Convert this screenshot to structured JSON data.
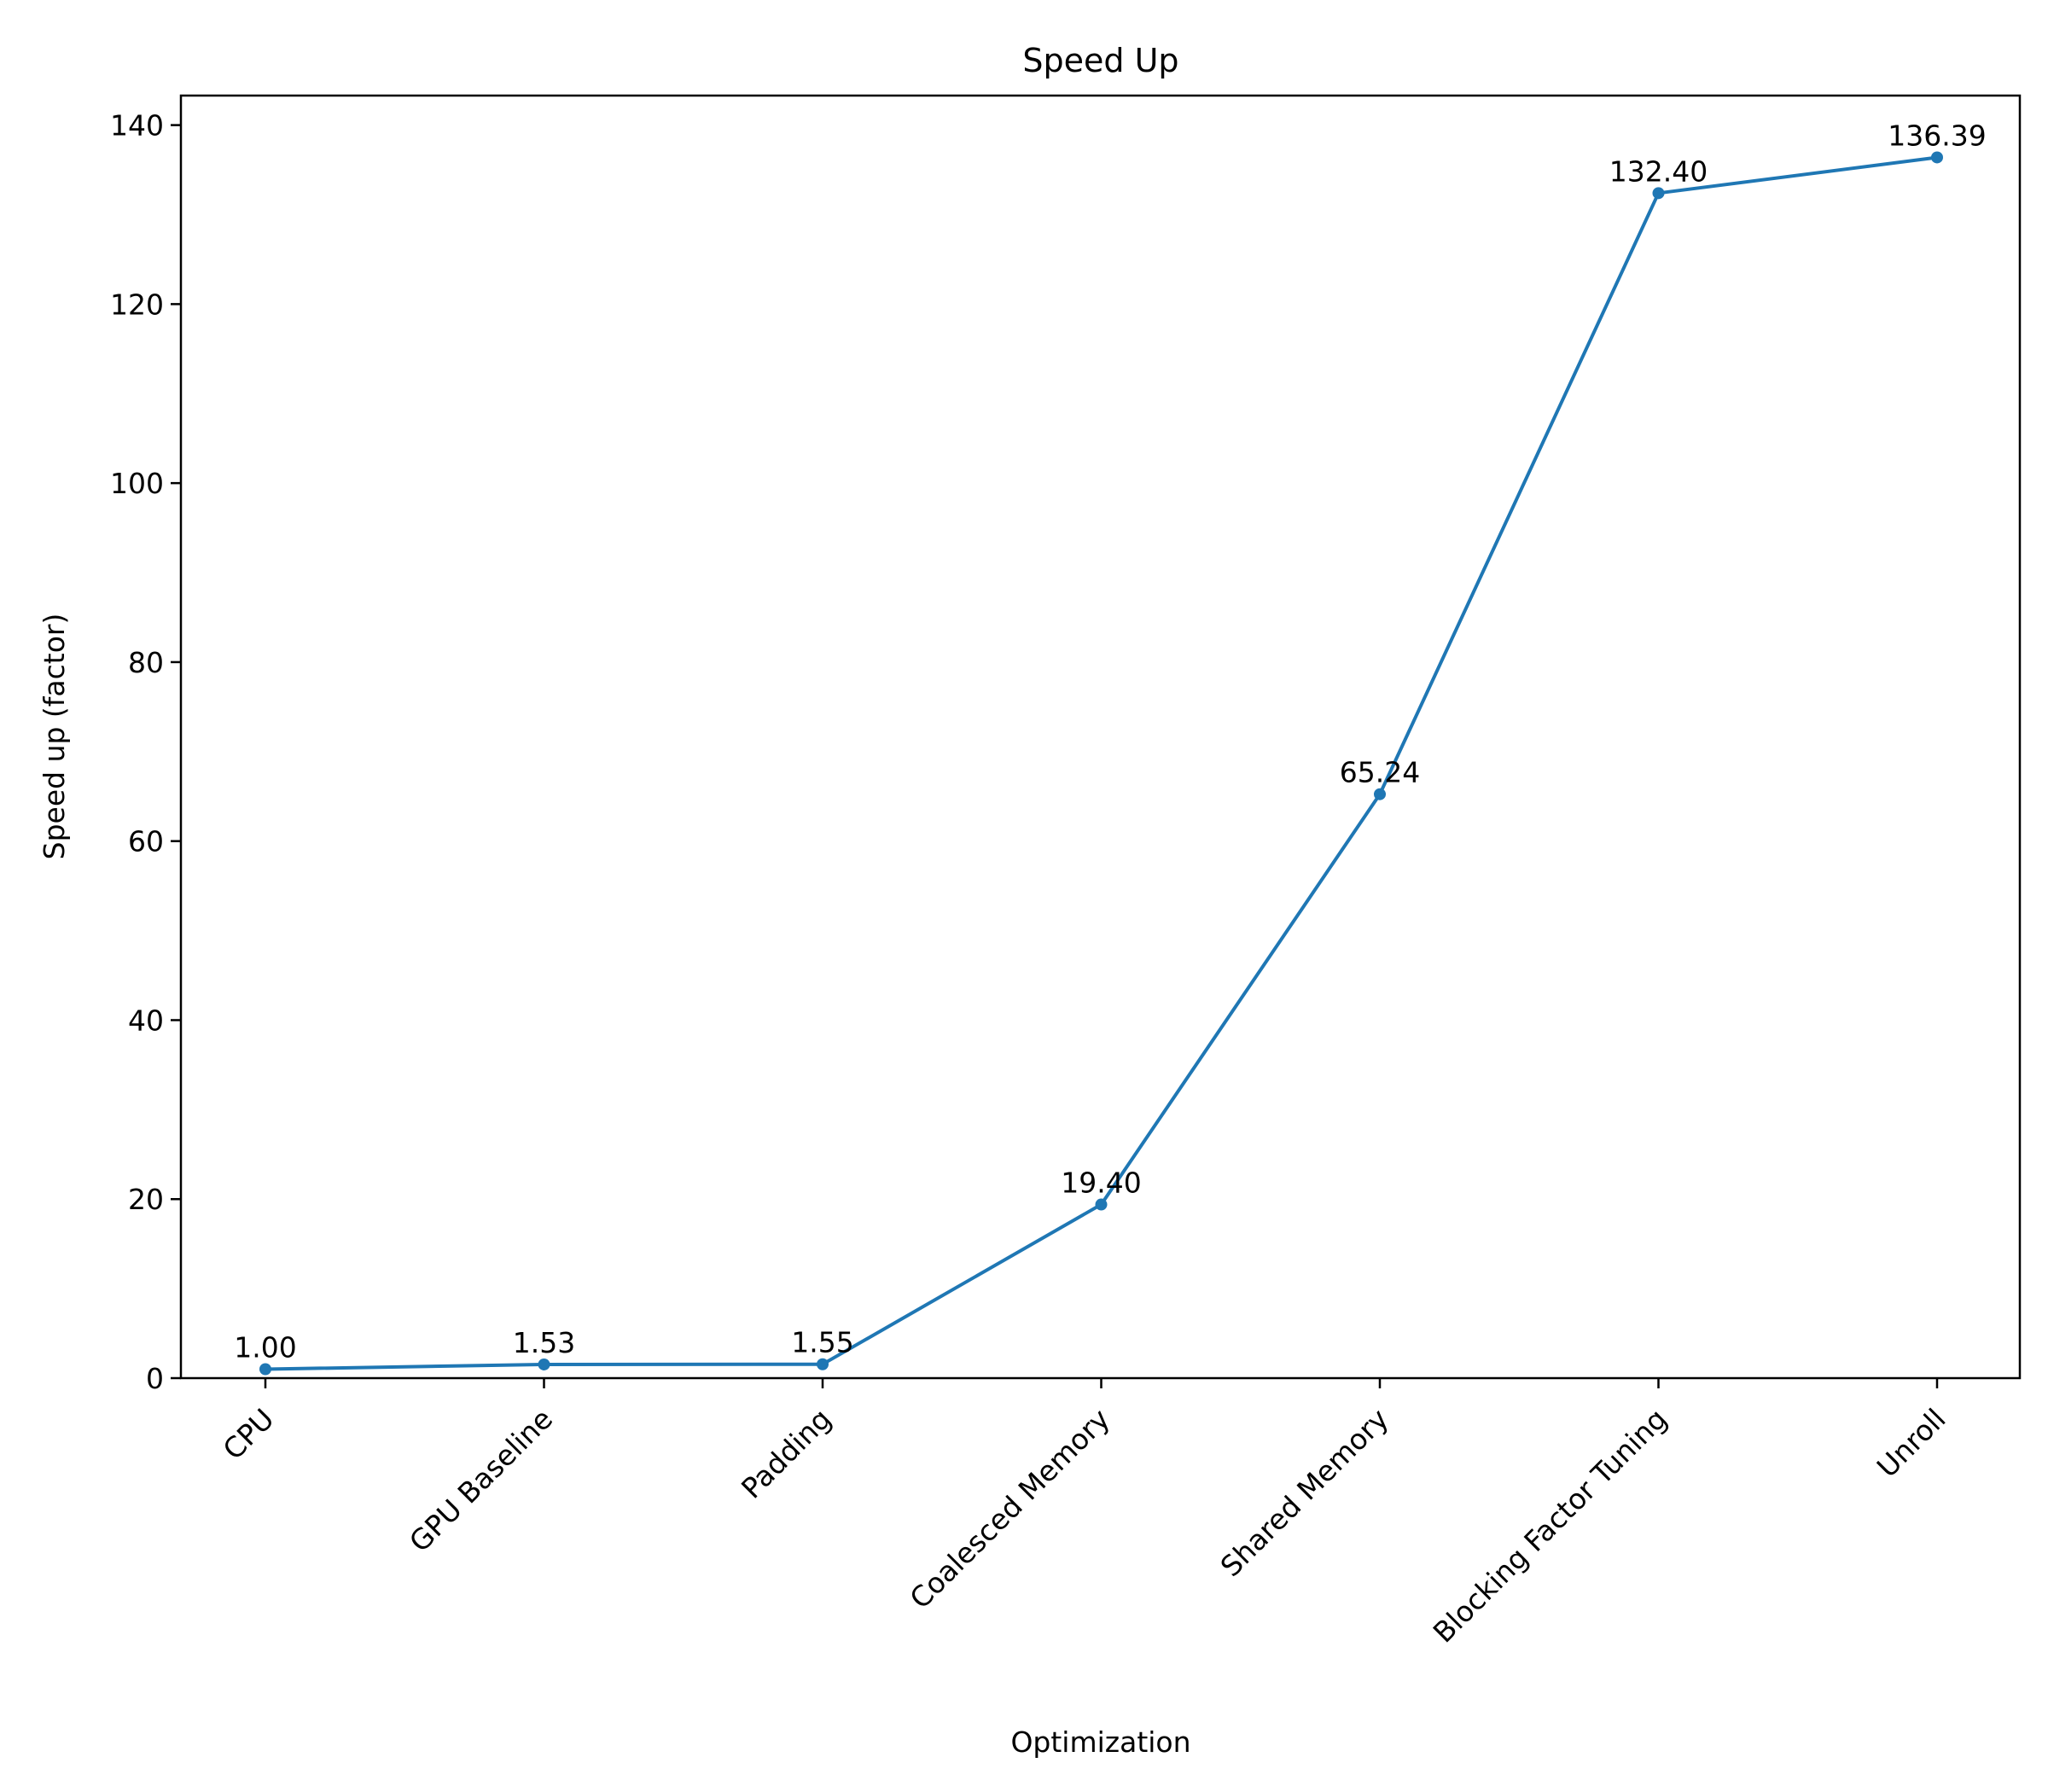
{
  "chart_data": {
    "type": "line",
    "title": "Speed Up",
    "xlabel": "Optimization",
    "ylabel": "Speed up (factor)",
    "categories": [
      "CPU",
      "GPU Baseline",
      "Padding",
      "Coalesced Memory",
      "Shared Memory",
      "Blocking Factor Tuning",
      "Unroll"
    ],
    "series": [
      {
        "values": [
          1.0,
          1.53,
          1.55,
          19.4,
          65.24,
          132.4,
          136.39
        ]
      }
    ],
    "data_labels": [
      "1.00",
      "1.53",
      "1.55",
      "19.40",
      "65.24",
      "132.40",
      "136.39"
    ],
    "ylim": [
      0,
      143.3
    ],
    "yticks": [
      0,
      20,
      40,
      60,
      80,
      100,
      120,
      140
    ],
    "grid": false,
    "legend": "none",
    "colors": {
      "series": "#1f77b4"
    }
  }
}
